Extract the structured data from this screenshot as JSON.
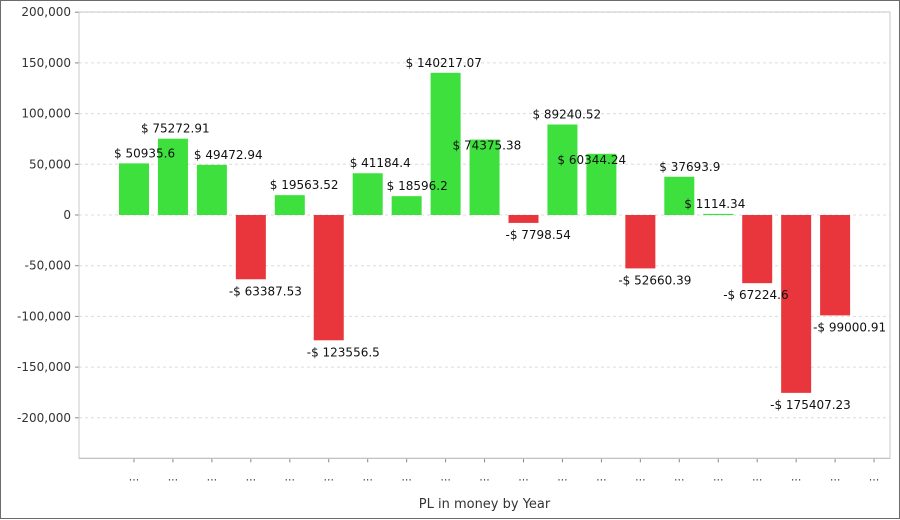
{
  "chart_data": {
    "type": "bar",
    "title": "",
    "xlabel": "PL in money by Year",
    "ylabel": "",
    "ylim": [
      -240000,
      200000
    ],
    "yticks": [
      200000,
      150000,
      100000,
      50000,
      0,
      -50000,
      -100000,
      -150000,
      -200000
    ],
    "ytick_labels": [
      "200,000",
      "150,000",
      "100,000",
      "50,000",
      "0",
      "-50,000",
      "-100,000",
      "-150,000",
      "-200,000"
    ],
    "grid": true,
    "legend": "none",
    "categories": [
      "...",
      "...",
      "...",
      "...",
      "...",
      "...",
      "...",
      "...",
      "...",
      "...",
      "...",
      "...",
      "...",
      "...",
      "...",
      "...",
      "...",
      "...",
      "...",
      "..."
    ],
    "values": [
      50935.6,
      75272.91,
      49472.94,
      -63387.53,
      19563.52,
      -123556.5,
      41184.4,
      18596.2,
      140217.07,
      74375.38,
      -7798.54,
      89240.52,
      60344.24,
      -52660.39,
      37693.9,
      1114.34,
      -67224.6,
      -175407.23,
      -99000.91,
      0
    ],
    "data_labels": [
      "$ 50935.6",
      "$ 75272.91",
      "$ 49472.94",
      "-$ 63387.53",
      "$ 19563.52",
      "-$ 123556.5",
      "$ 41184.4",
      "$ 18596.2",
      "$ 140217.07",
      "$ 74375.38",
      "-$ 7798.54",
      "$ 89240.52",
      "$ 60344.24",
      "-$ 52660.39",
      "$ 37693.9",
      "$ 1114.34",
      "-$ 67224.6",
      "-$ 175407.23",
      "-$ 99000.91",
      ""
    ],
    "colors": {
      "positive": "#3ee03e",
      "negative": "#e8363c",
      "grid": "#dcdcdc",
      "axis": "#888888"
    }
  }
}
